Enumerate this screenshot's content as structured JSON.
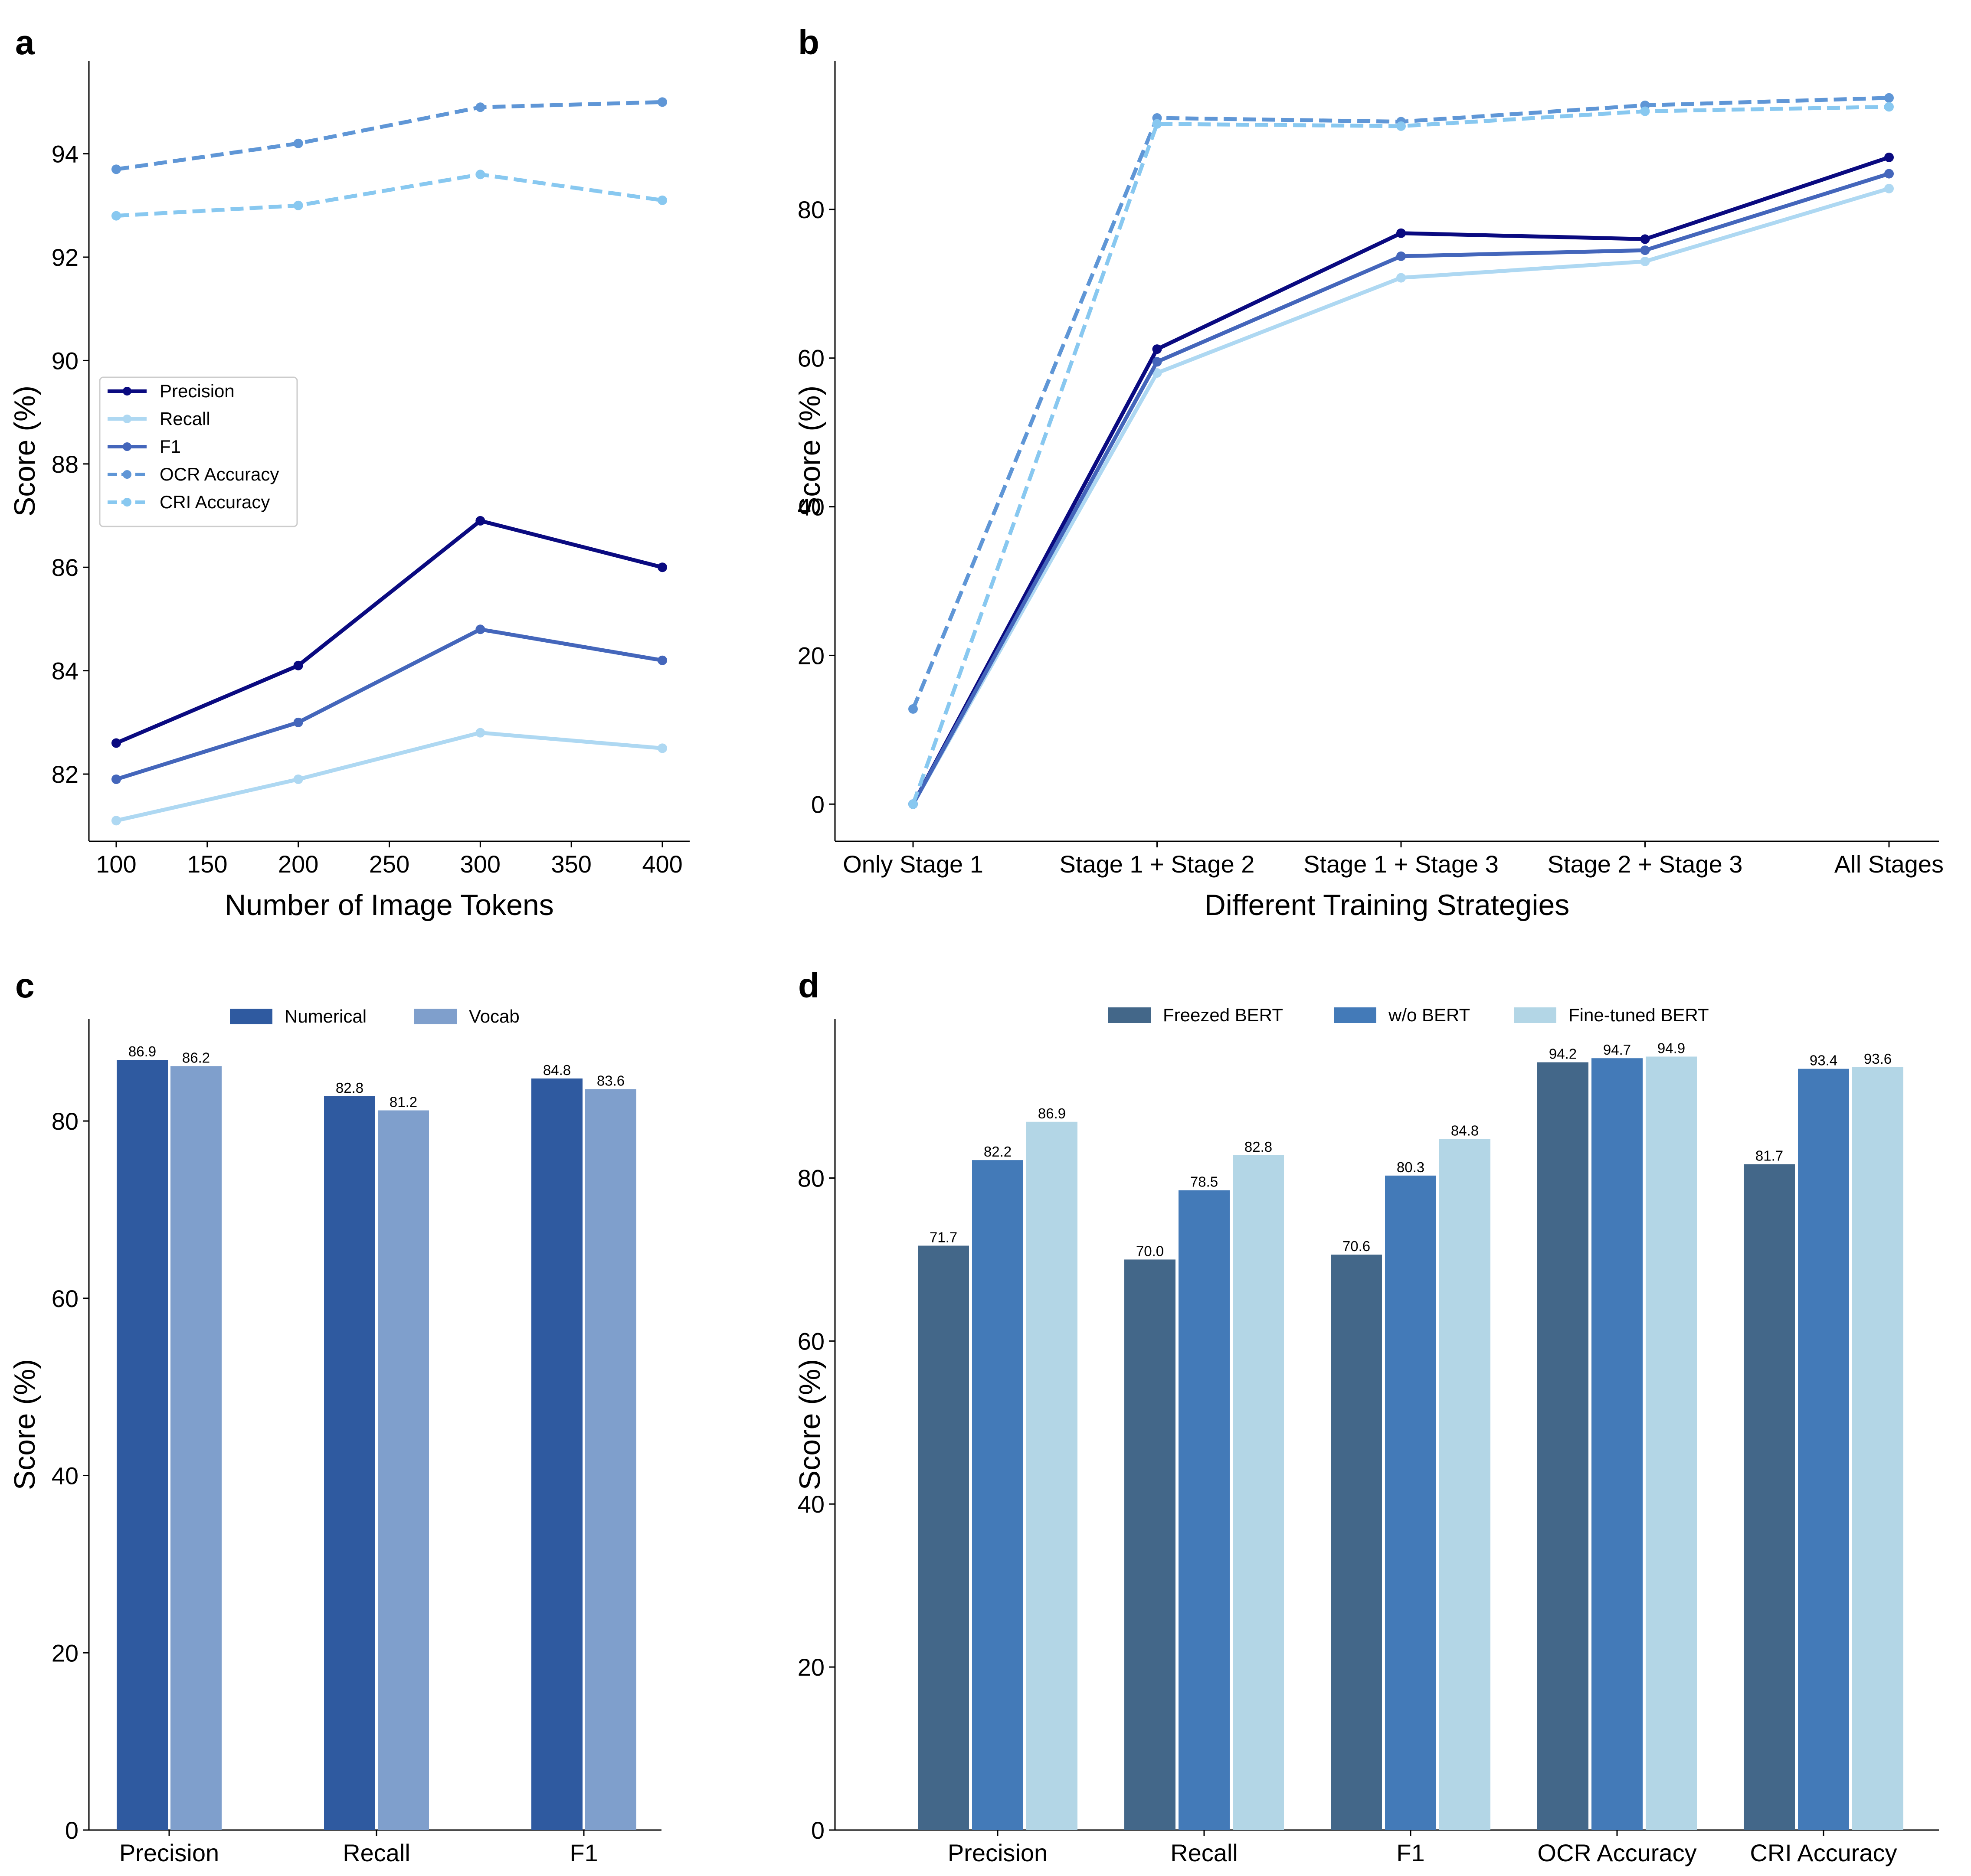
{
  "chart_data": [
    {
      "id": "a",
      "panel_label": "a",
      "type": "line",
      "xlabel": "Number of Image Tokens",
      "ylabel": "Score (%)",
      "x": [
        100,
        200,
        300,
        400
      ],
      "xlim": [
        85,
        415
      ],
      "ylim": [
        80.7,
        95.8
      ],
      "xticks": [
        "100",
        "150",
        "200",
        "250",
        "300",
        "350",
        "400"
      ],
      "xtick_values": [
        100,
        150,
        200,
        250,
        300,
        350,
        400
      ],
      "yticks": [
        "82",
        "84",
        "86",
        "88",
        "90",
        "92",
        "94"
      ],
      "ytick_values": [
        82,
        84,
        86,
        88,
        90,
        92,
        94
      ],
      "legend_position": "center-left",
      "series": [
        {
          "name": "Precision",
          "values": [
            82.6,
            84.1,
            86.9,
            86.0
          ],
          "color": "#0a0a80",
          "dashed": false
        },
        {
          "name": "Recall",
          "values": [
            81.1,
            81.9,
            82.8,
            82.5
          ],
          "color": "#aed8f2",
          "dashed": false
        },
        {
          "name": "F1",
          "values": [
            81.9,
            83.0,
            84.8,
            84.2
          ],
          "color": "#4466bb",
          "dashed": false
        },
        {
          "name": "OCR Accuracy",
          "values": [
            93.7,
            94.2,
            94.9,
            95.0
          ],
          "color": "#5f96d6",
          "dashed": true
        },
        {
          "name": "CRI Accuracy",
          "values": [
            92.8,
            93.0,
            93.6,
            93.1
          ],
          "color": "#88c8f0",
          "dashed": true
        }
      ]
    },
    {
      "id": "b",
      "panel_label": "b",
      "type": "line",
      "xlabel": "Different Training Strategies",
      "ylabel": "Score (%)",
      "categories": [
        "Only Stage 1",
        "Stage 1 + Stage 2",
        "Stage 1 + Stage 3",
        "Stage 2 + Stage 3",
        "All Stages"
      ],
      "ylim": [
        -5,
        100
      ],
      "yticks": [
        "0",
        "20",
        "40",
        "60",
        "80"
      ],
      "ytick_values": [
        0,
        20,
        40,
        60,
        80
      ],
      "series": [
        {
          "name": "Precision",
          "values": [
            0,
            61.2,
            76.8,
            76.0,
            87.0
          ],
          "color": "#0a0a80",
          "dashed": false
        },
        {
          "name": "Recall",
          "values": [
            0,
            58.0,
            70.8,
            73.0,
            82.8
          ],
          "color": "#aed8f2",
          "dashed": false
        },
        {
          "name": "F1",
          "values": [
            0,
            59.5,
            73.7,
            74.5,
            84.8
          ],
          "color": "#4466bb",
          "dashed": false
        },
        {
          "name": "OCR Accuracy",
          "values": [
            12.8,
            92.3,
            91.8,
            94.0,
            95.0
          ],
          "color": "#5f96d6",
          "dashed": true
        },
        {
          "name": "CRI Accuracy",
          "values": [
            0,
            91.5,
            91.2,
            93.2,
            93.8
          ],
          "color": "#88c8f0",
          "dashed": true
        }
      ]
    },
    {
      "id": "c",
      "panel_label": "c",
      "type": "bar",
      "xlabel": "",
      "ylabel": "Score (%)",
      "categories": [
        "Precision",
        "Recall",
        "F1"
      ],
      "ylim": [
        0,
        91.5
      ],
      "yticks": [
        "0",
        "20",
        "40",
        "60",
        "80"
      ],
      "ytick_values": [
        0,
        20,
        40,
        60,
        80
      ],
      "legend_position": "top-center",
      "series": [
        {
          "name": "Numerical",
          "values": [
            86.9,
            82.8,
            84.8
          ],
          "labels": [
            "86.9",
            "82.8",
            "84.8"
          ],
          "color": "#2f5aa0"
        },
        {
          "name": "Vocab",
          "values": [
            86.2,
            81.2,
            83.6
          ],
          "labels": [
            "86.2",
            "81.2",
            "83.6"
          ],
          "color": "#7f9fcc"
        }
      ]
    },
    {
      "id": "d",
      "panel_label": "d",
      "type": "bar",
      "xlabel": "",
      "ylabel": "Score (%)",
      "categories": [
        "Precision",
        "Recall",
        "F1",
        "OCR Accuracy",
        "CRI Accuracy"
      ],
      "ylim": [
        0,
        99.5
      ],
      "yticks": [
        "0",
        "20",
        "40",
        "60",
        "80"
      ],
      "ytick_values": [
        0,
        20,
        40,
        60,
        80
      ],
      "legend_position": "top-center",
      "series": [
        {
          "name": "Freezed BERT",
          "values": [
            71.7,
            70.0,
            70.6,
            94.2,
            81.7
          ],
          "labels": [
            "71.7",
            "70.0",
            "70.6",
            "94.2",
            "81.7"
          ],
          "color": "#436789"
        },
        {
          "name": "w/o BERT",
          "values": [
            82.2,
            78.5,
            80.3,
            94.7,
            93.4
          ],
          "labels": [
            "82.2",
            "78.5",
            "80.3",
            "94.7",
            "93.4"
          ],
          "color": "#437ab8"
        },
        {
          "name": "Fine-tuned BERT",
          "values": [
            86.9,
            82.8,
            84.8,
            94.9,
            93.6
          ],
          "labels": [
            "86.9",
            "82.8",
            "84.8",
            "94.9",
            "93.6"
          ],
          "color": "#b3d6e6"
        }
      ]
    }
  ]
}
